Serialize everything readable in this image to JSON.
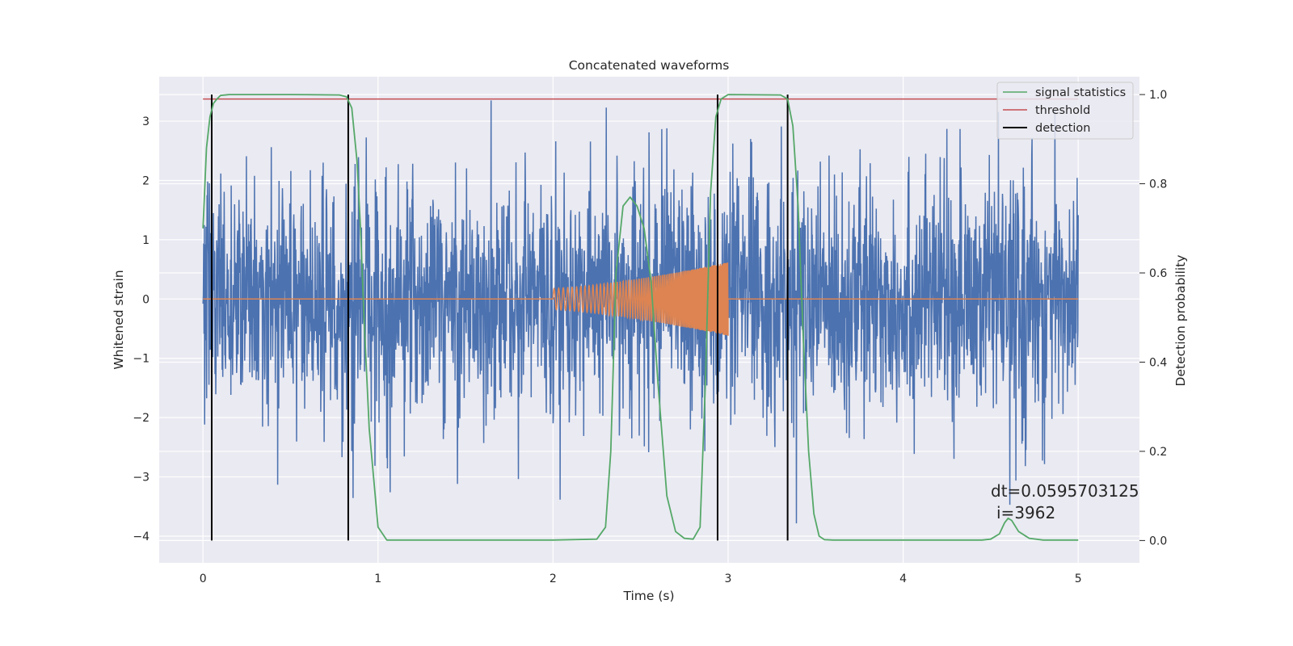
{
  "chart_data": {
    "type": "line",
    "title": "Concatenated waveforms",
    "xlabel": "Time (s)",
    "ylabel": "Whitened strain",
    "y2label": "Detection probability",
    "xlim": [
      -0.25,
      5.35
    ],
    "ylim": [
      -4.45,
      3.75
    ],
    "y2lim": [
      -0.05,
      1.04
    ],
    "xticks": [
      0,
      1,
      2,
      3,
      4,
      5
    ],
    "xtick_labels": [
      "0",
      "1",
      "2",
      "3",
      "4",
      "5"
    ],
    "yticks": [
      -4,
      -3,
      -2,
      -1,
      0,
      1,
      2,
      3
    ],
    "ytick_labels": [
      "−4",
      "−3",
      "−2",
      "−1",
      "0",
      "1",
      "2",
      "3"
    ],
    "y2ticks": [
      0.0,
      0.2,
      0.4,
      0.6,
      0.8,
      1.0
    ],
    "y2tick_labels": [
      "0.0",
      "0.2",
      "0.4",
      "0.6",
      "0.8",
      "1.0"
    ],
    "grid": true,
    "legend_position": "top-right",
    "colors": {
      "strain": "#4c72b0",
      "injection": "#dd8452",
      "signal_statistics": "#55a868",
      "threshold": "#c44e52",
      "detection": "#000000",
      "background": "#eaeaf2",
      "grid": "#ffffff"
    },
    "series": [
      {
        "key": "strain",
        "x_range": [
          0,
          5
        ],
        "y_typical_range": [
          -2.3,
          2.3
        ],
        "y_peak_range": [
          -4.05,
          3.35
        ],
        "note": "dense noise"
      },
      {
        "key": "injection",
        "x_range": [
          0,
          5
        ],
        "chirp_start": 2.0,
        "chirp_end": 3.0,
        "start_amplitude": 0.18,
        "end_amplitude": 0.62
      },
      {
        "name": "signal statistics",
        "axis": "right",
        "x": [
          0,
          0.02,
          0.04,
          0.06,
          0.08,
          0.1,
          0.15,
          0.5,
          0.78,
          0.82,
          0.85,
          0.88,
          0.9,
          0.92,
          0.95,
          1.0,
          1.05,
          1.5,
          2.0,
          2.25,
          2.3,
          2.33,
          2.36,
          2.4,
          2.44,
          2.48,
          2.52,
          2.56,
          2.6,
          2.65,
          2.7,
          2.75,
          2.8,
          2.84,
          2.87,
          2.9,
          2.93,
          2.96,
          3.0,
          3.3,
          3.34,
          3.37,
          3.4,
          3.43,
          3.46,
          3.49,
          3.52,
          3.55,
          3.6,
          4.0,
          4.45,
          4.5,
          4.55,
          4.58,
          4.6,
          4.62,
          4.66,
          4.72,
          4.8,
          5.0
        ],
        "y": [
          0.7,
          0.88,
          0.95,
          0.98,
          0.99,
          0.998,
          1.0,
          1.0,
          0.999,
          0.995,
          0.97,
          0.85,
          0.7,
          0.5,
          0.25,
          0.03,
          0.001,
          0.001,
          0.001,
          0.003,
          0.03,
          0.2,
          0.6,
          0.75,
          0.77,
          0.75,
          0.7,
          0.58,
          0.35,
          0.1,
          0.02,
          0.005,
          0.003,
          0.03,
          0.35,
          0.78,
          0.95,
          0.99,
          1.0,
          0.999,
          0.99,
          0.93,
          0.75,
          0.45,
          0.2,
          0.06,
          0.01,
          0.002,
          0.001,
          0.001,
          0.001,
          0.003,
          0.015,
          0.04,
          0.05,
          0.045,
          0.02,
          0.005,
          0.001,
          0.001
        ]
      },
      {
        "name": "threshold",
        "axis": "right",
        "x": [
          0,
          5
        ],
        "y": [
          0.99,
          0.99
        ]
      },
      {
        "name": "detection",
        "x": [
          0.05,
          0.83,
          2.94,
          3.34
        ]
      }
    ],
    "annotations": [
      "dt=0.0595703125",
      "i=3962"
    ]
  }
}
